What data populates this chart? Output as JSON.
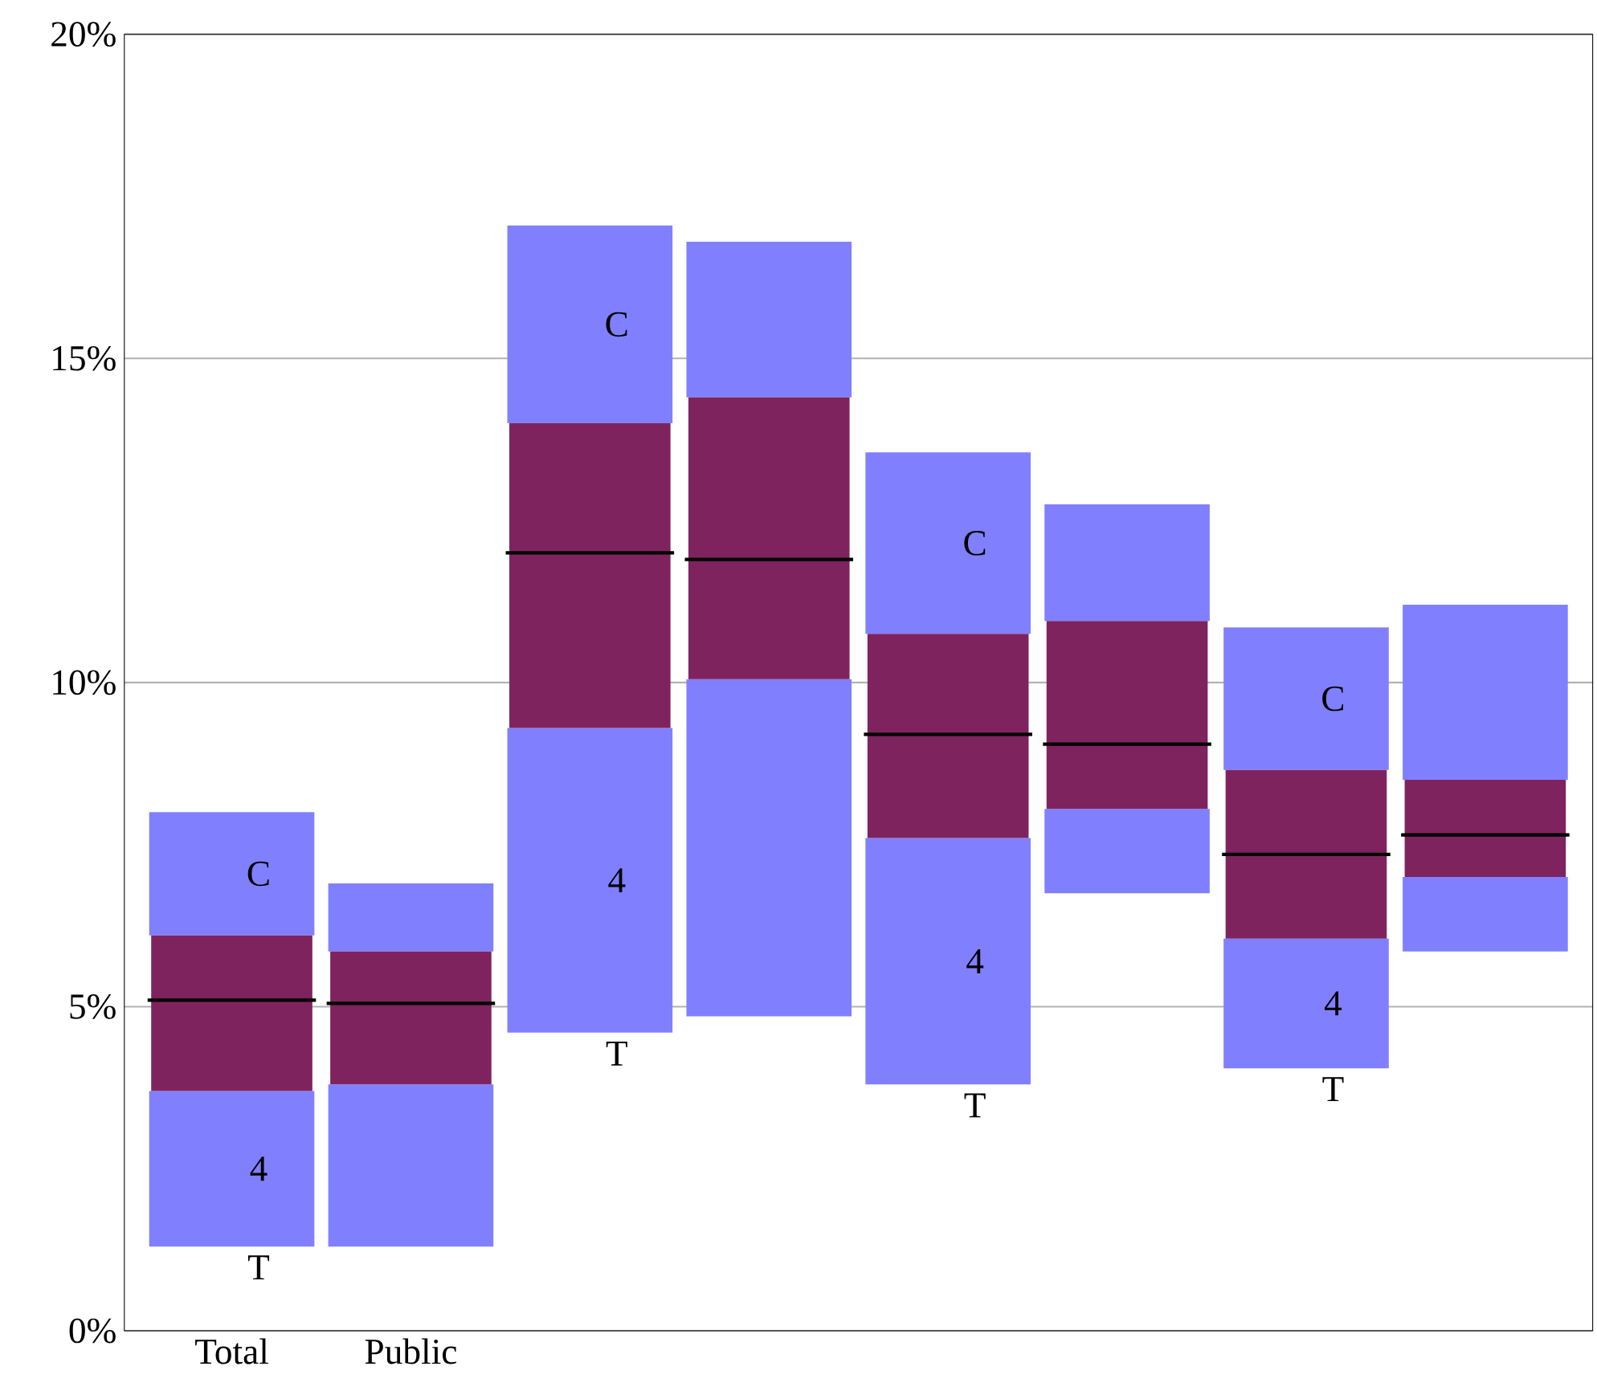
{
  "chart_data": {
    "type": "box",
    "categories": [
      "Total",
      "Public",
      null,
      null,
      null,
      null,
      null,
      null
    ],
    "color": "#8080ff",
    "series": [
      {
        "color": "#7f235f",
        "boxes": [
          {
            "low": 1.3,
            "q1": 3.7,
            "median": 5.1,
            "q3": 6.1,
            "high": 8.0
          },
          {
            "low": 1.3,
            "q1": 3.8,
            "median": 5.05,
            "q3": 5.85,
            "high": 6.9
          },
          {
            "low": 4.6,
            "q1": 9.3,
            "median": 12.0,
            "q3": 14.0,
            "high": 17.05
          },
          {
            "low": 4.85,
            "q1": 10.05,
            "median": 11.9,
            "q3": 14.4,
            "high": 16.8
          },
          {
            "low": 3.8,
            "q1": 7.6,
            "median": 9.2,
            "q3": 10.75,
            "high": 13.55
          },
          {
            "low": 6.75,
            "q1": 8.05,
            "median": 9.05,
            "q3": 10.95,
            "high": 12.75
          },
          {
            "low": 4.05,
            "q1": 6.05,
            "median": 7.35,
            "q3": 8.65,
            "high": 10.85
          },
          {
            "low": 5.85,
            "q1": 7.0,
            "median": 7.65,
            "q3": 8.5,
            "high": 11.2
          }
        ]
      }
    ],
    "annotations": [
      "C",
      "4",
      "T",
      "C",
      "4",
      "T",
      "C",
      "4",
      "T",
      "C",
      "4",
      "T"
    ],
    "ylim": [
      0,
      20
    ],
    "yticks": [
      {
        "value": 0,
        "label": "0%"
      },
      {
        "value": 5,
        "label": "5%"
      },
      {
        "value": 10,
        "label": "10%"
      },
      {
        "value": 15,
        "label": "15%"
      },
      {
        "value": 20,
        "label": "20%"
      }
    ],
    "grid": "y"
  }
}
